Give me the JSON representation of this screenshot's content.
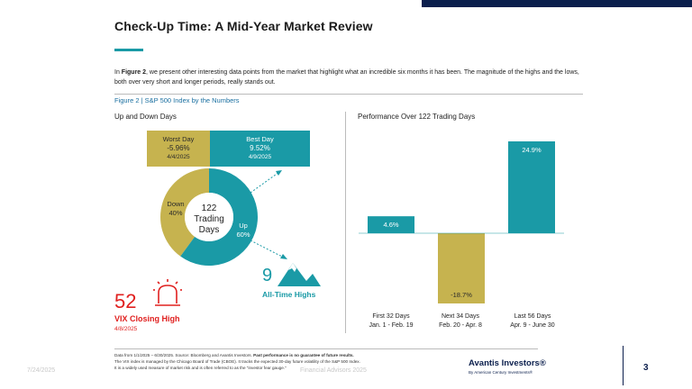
{
  "header": {
    "title": "Check-Up Time: A Mid-Year Market Review"
  },
  "intro": {
    "prefix": "In ",
    "figure_ref": "Figure 2",
    "text": ", we present other interesting data points from the market that highlight what an incredible six months it has been. The magnitude of the highs and the lows, both over very short and longer periods, really stands out."
  },
  "figure_caption": "Figure 2 | S&P 500 Index by the Numbers",
  "left_panel": {
    "title": "Up and Down Days",
    "worst_day": {
      "label": "Worst Day",
      "value": "-5.96%",
      "date": "4/4/2025"
    },
    "best_day": {
      "label": "Best Day",
      "value": "9.52%",
      "date": "4/9/2025"
    },
    "donut": {
      "center_line1": "122",
      "center_line2": "Trading",
      "center_line3": "Days",
      "down_label": "Down",
      "down_pct": "40%",
      "up_label": "Up",
      "up_pct": "60%",
      "down_fraction": 0.4,
      "up_fraction": 0.6,
      "down_color": "#c6b34f",
      "up_color": "#1a9aa6"
    },
    "vix": {
      "value": "52",
      "label": "VIX Closing High",
      "date": "4/8/2025",
      "icon": "siren-icon",
      "color": "#e0201f"
    },
    "ath": {
      "value": "9",
      "label": "All-Time Highs",
      "icon": "mountain-icon",
      "color": "#1a9aa6"
    }
  },
  "right_panel": {
    "title": "Performance Over 122 Trading Days"
  },
  "chart_data": {
    "type": "bar",
    "title": "Performance Over 122 Trading Days",
    "categories": [
      "First 32 Days",
      "Next 34 Days",
      "Last 56 Days"
    ],
    "sublabels": [
      "Jan. 1 - Feb. 19",
      "Feb. 20 - Apr. 8",
      "Apr. 9 - June 30"
    ],
    "values": [
      4.6,
      -18.7,
      24.9
    ],
    "value_labels": [
      "4.6%",
      "-18.7%",
      "24.9%"
    ],
    "colors": [
      "#1a9aa6",
      "#c6b34f",
      "#1a9aa6"
    ],
    "ylim": [
      -18.7,
      24.9
    ],
    "grid": false
  },
  "footer": {
    "note_line1": "Data from 1/1/2025 – 6/30/2025. Source: Bloomberg and Avantis Investors. ",
    "note_bold": "Past performance is no guarantee of future results.",
    "note_line2": "The VIX index is managed by the Chicago Board of Trade (CBOE). It tracks the expected 30-day future volatility of the S&P 500 Index.",
    "note_line3": "It is a widely used measure of market risk and is often referred to as the \"investor fear gauge.\"",
    "date": "7/24/2025",
    "copyright": "Financial Advisors 2025",
    "brand": "Avantis Investors®",
    "brand_sub": "By American Century Investments®",
    "page_number": "3"
  }
}
